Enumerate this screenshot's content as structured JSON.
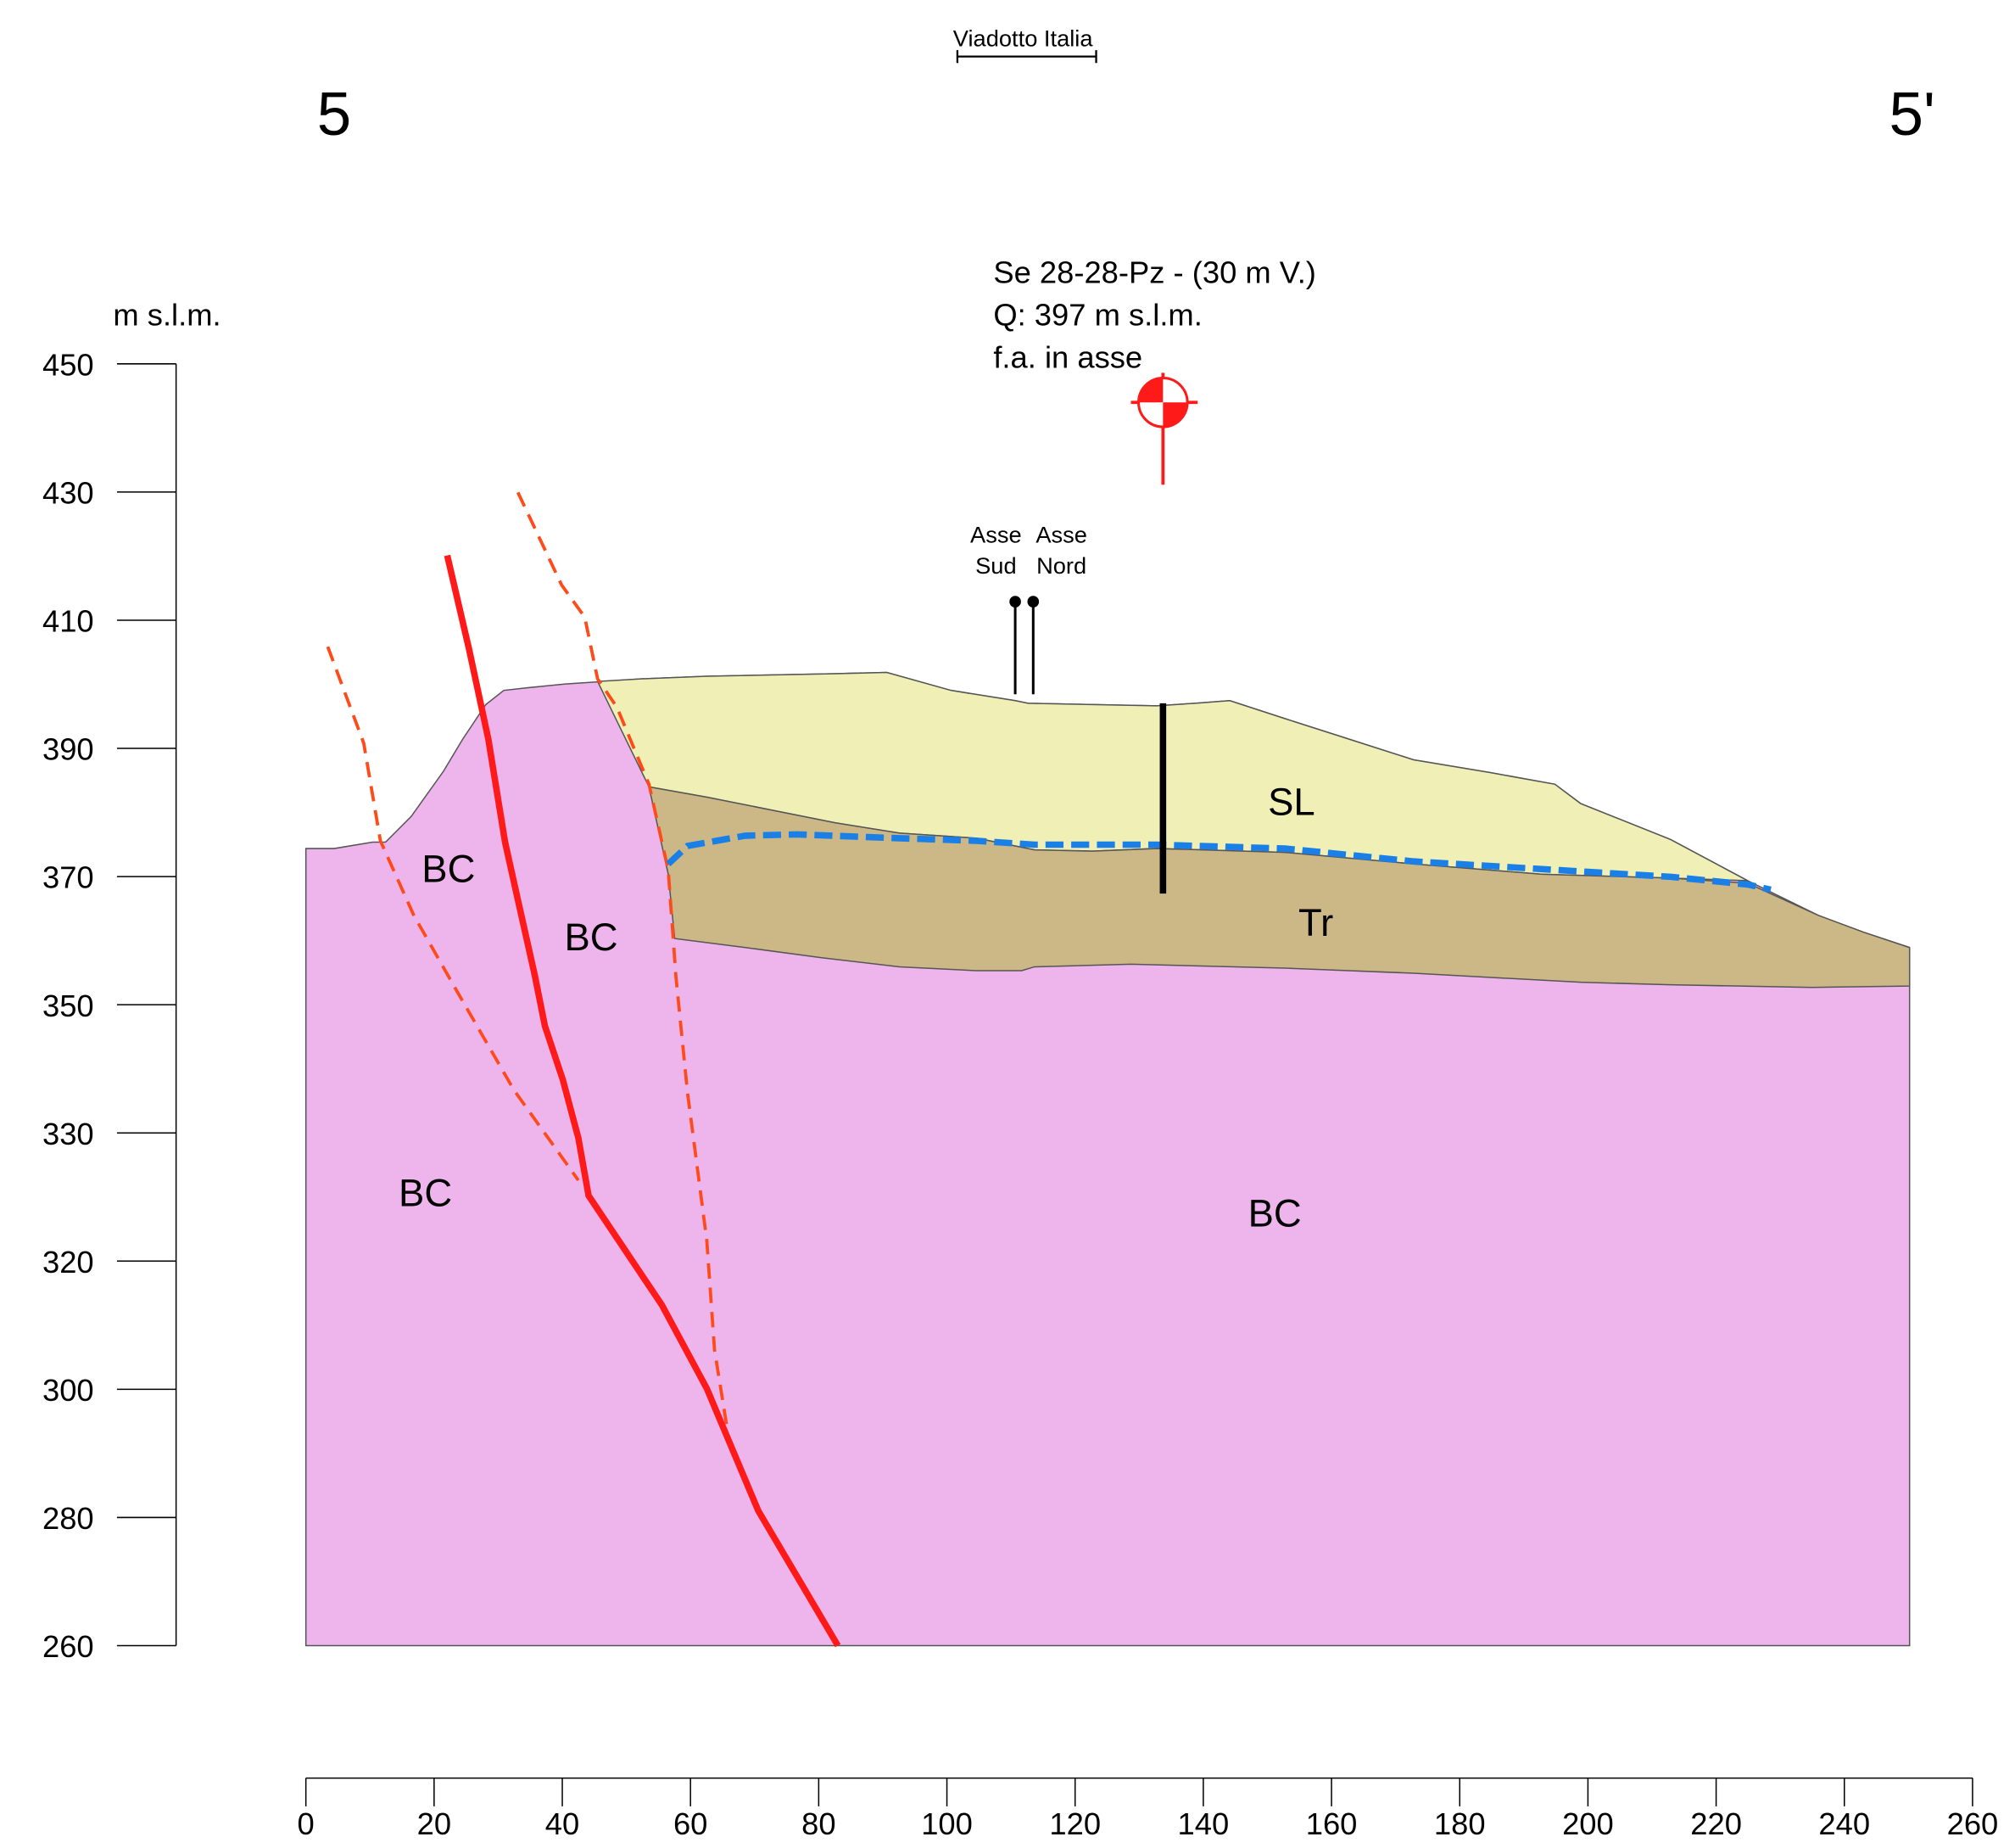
{
  "header": {
    "title": "Viadotto Italia",
    "start_label": "5",
    "end_label": "5'"
  },
  "y_axis": {
    "label": "m s.l.m.",
    "tick_labels": [
      "450",
      "430",
      "410",
      "390",
      "370",
      "350",
      "330",
      "320",
      "300",
      "280",
      "260"
    ]
  },
  "x_axis": {
    "tick_labels": [
      "0",
      "20",
      "40",
      "60",
      "80",
      "100",
      "120",
      "140",
      "160",
      "180",
      "200",
      "220",
      "240",
      "260"
    ]
  },
  "borehole": {
    "lines": [
      "Se 28-28-Pz - (30 m V.)",
      "Q: 397 m s.l.m.",
      "f.a. in asse"
    ]
  },
  "axes_markers": {
    "south": [
      "Asse",
      "Sud"
    ],
    "north": [
      "Asse",
      "Nord"
    ]
  },
  "layers": {
    "bc_1": "BC",
    "bc_2": "BC",
    "bc_3": "BC",
    "bc_4": "BC",
    "sl": "SL",
    "tr": "Tr"
  }
}
